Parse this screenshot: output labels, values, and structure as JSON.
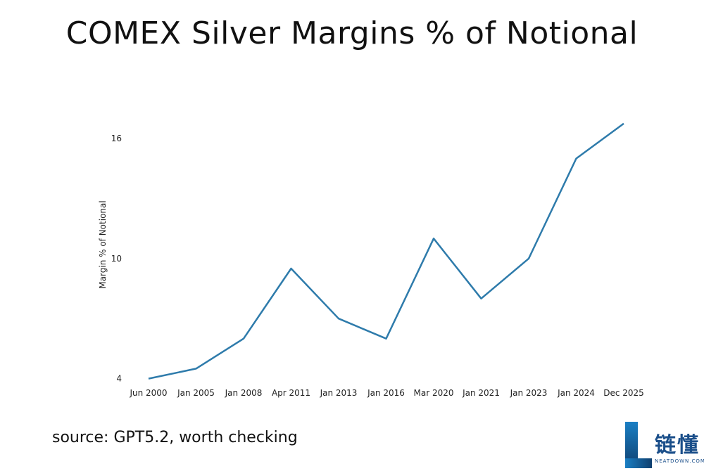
{
  "slide": {
    "title": "COMEX Silver Margins % of Notional",
    "source": "source: GPT5.2, worth checking"
  },
  "logo": {
    "brand": "链懂",
    "sub": "NEATDOWN.COM",
    "color": "#1b4f8a"
  },
  "chart_data": {
    "type": "line",
    "title": "",
    "xlabel": "",
    "ylabel": "Margin % of Notional",
    "categories": [
      "Jun 2000",
      "Jan 2005",
      "Jan 2008",
      "Apr 2011",
      "Jan 2013",
      "Jan 2016",
      "Mar 2020",
      "Jan 2021",
      "Jan 2023",
      "Jan 2024",
      "Dec 2025"
    ],
    "series": [
      {
        "values": [
          4.0,
          4.5,
          6.0,
          9.5,
          7.0,
          6.0,
          11.0,
          8.0,
          10.0,
          15.0,
          16.75
        ],
        "color": "#2e7bab"
      }
    ],
    "yticks": [
      4,
      10,
      16
    ],
    "ylim": [
      3.6,
      17.3
    ],
    "grid": false,
    "legend": "none"
  }
}
